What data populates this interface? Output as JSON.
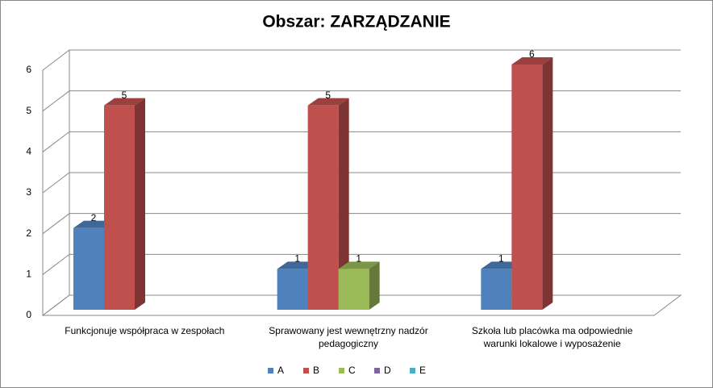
{
  "chart_data": {
    "type": "bar3d",
    "title": "Obszar: ZARZĄDZANIE",
    "categories": [
      "Funkcjonuje współpraca w zespołach",
      "Sprawowany jest wewnętrzny nadzór pedagogiczny",
      "Szkoła lub placówka ma odpowiednie warunki lokalowe i wyposażenie"
    ],
    "series": [
      {
        "name": "A",
        "color": "#4f81bd",
        "values": [
          2,
          1,
          1
        ]
      },
      {
        "name": "B",
        "color": "#c0504d",
        "values": [
          5,
          5,
          6
        ]
      },
      {
        "name": "C",
        "color": "#9bbb59",
        "values": [
          null,
          1,
          null
        ]
      },
      {
        "name": "D",
        "color": "#8064a2",
        "values": [
          null,
          null,
          null
        ]
      },
      {
        "name": "E",
        "color": "#4bacc6",
        "values": [
          null,
          null,
          null
        ]
      }
    ],
    "ylim": [
      0,
      6
    ],
    "yticks": [
      0,
      1,
      2,
      3,
      4,
      5,
      6
    ],
    "grid": true,
    "legend": "bottom"
  }
}
